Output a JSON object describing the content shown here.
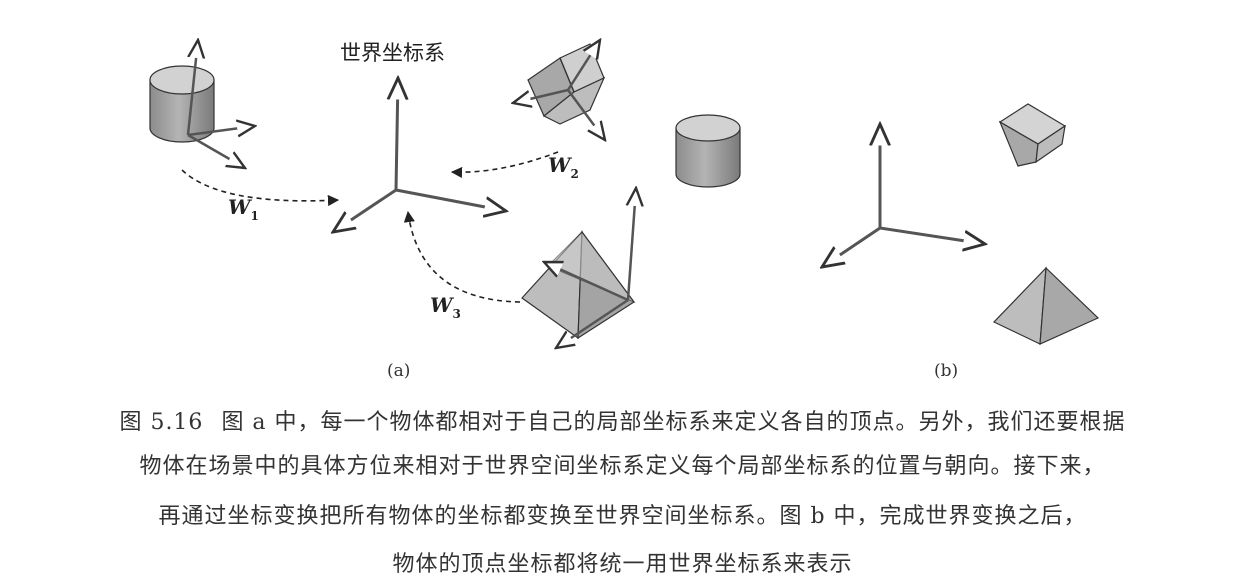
{
  "figure": {
    "world_label": "世界坐标系",
    "transform_labels": [
      {
        "main": "W",
        "sub": "1"
      },
      {
        "main": "W",
        "sub": "2"
      },
      {
        "main": "W",
        "sub": "3"
      }
    ],
    "panel_a_label": "(a)",
    "panel_b_label": "(b)"
  },
  "caption": {
    "number": "图 5.16",
    "line1": "图 a 中，每一个物体都相对于自己的局部坐标系来定义各自的顶点。另外，我们还要根据",
    "line2": "物体在场景中的具体方位来相对于世界空间坐标系定义每个局部坐标系的位置与朝向。接下来，",
    "line3": "再通过坐标变换把所有物体的坐标都变换至世界空间坐标系。图 b 中，完成世界变换之后，",
    "line4": "物体的顶点坐标都将统一用世界坐标系来表示"
  }
}
